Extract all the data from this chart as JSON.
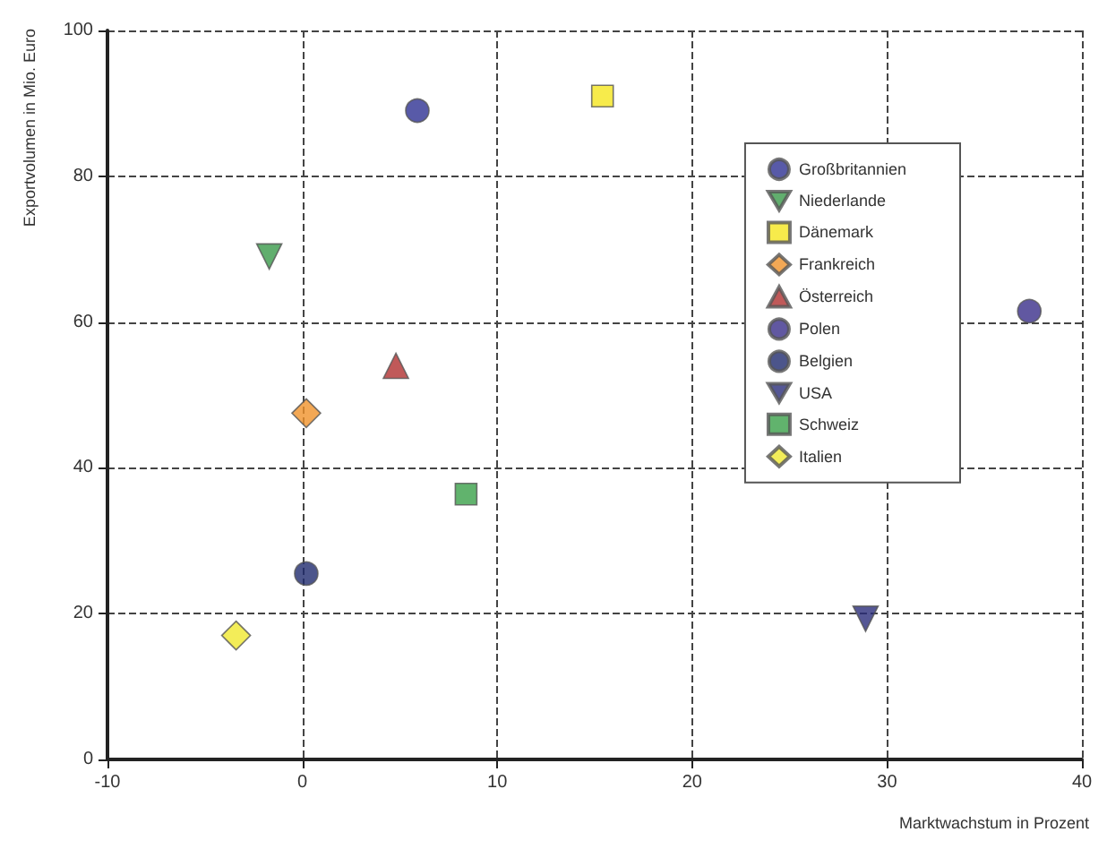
{
  "chart_data": {
    "type": "scatter",
    "xlabel": "Marktwachstum in Prozent",
    "ylabel": "Exportvolumen in Mio. Euro",
    "xlim": [
      -10,
      40
    ],
    "xticks": [
      -10,
      0,
      10,
      20,
      30,
      40
    ],
    "ylim": [
      0,
      100
    ],
    "yticks": [
      0,
      20,
      40,
      60,
      80,
      100
    ],
    "grid": true,
    "legend": "top right",
    "series": [
      {
        "name": "Großbritannien",
        "color": "#2e3192",
        "marker": "circle",
        "x": [
          5.9
        ],
        "values": [
          89
        ]
      },
      {
        "name": "Niederlande",
        "color": "#3a9a4a",
        "marker": "triangle-down",
        "x": [
          -1.7
        ],
        "values": [
          69
        ]
      },
      {
        "name": "Dänemark",
        "color": "#f5e61e",
        "marker": "square",
        "x": [
          15.4
        ],
        "values": [
          91
        ]
      },
      {
        "name": "Frankreich",
        "color": "#f0922a",
        "marker": "diamond",
        "x": [
          0.2
        ],
        "values": [
          47.5
        ]
      },
      {
        "name": "Österreich",
        "color": "#b03030",
        "marker": "triangle",
        "x": [
          4.8
        ],
        "values": [
          54
        ]
      },
      {
        "name": "Polen",
        "color": "#3a2e8a",
        "marker": "circle",
        "x": [
          37.3
        ],
        "values": [
          61.5
        ]
      },
      {
        "name": "Belgien",
        "color": "#1f2a6e",
        "marker": "circle",
        "x": [
          0.2
        ],
        "values": [
          25.5
        ]
      },
      {
        "name": "USA",
        "color": "#2a2d7a",
        "marker": "triangle-down",
        "x": [
          28.9
        ],
        "values": [
          19.3
        ]
      },
      {
        "name": "Schweiz",
        "color": "#3aa048",
        "marker": "square",
        "x": [
          8.4
        ],
        "values": [
          36.4
        ]
      },
      {
        "name": "Italien",
        "color": "#f0e830",
        "marker": "diamond",
        "x": [
          -3.4
        ],
        "values": [
          17
        ]
      }
    ]
  }
}
